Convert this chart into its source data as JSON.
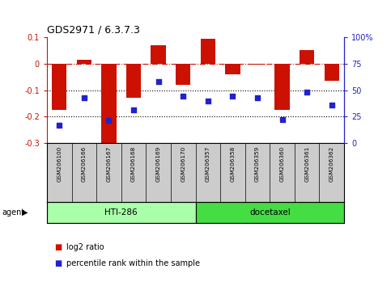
{
  "title": "GDS2971 / 6.3.7.3",
  "samples": [
    "GSM206100",
    "GSM206166",
    "GSM206167",
    "GSM206168",
    "GSM206169",
    "GSM206170",
    "GSM206357",
    "GSM206358",
    "GSM206359",
    "GSM206360",
    "GSM206361",
    "GSM206362"
  ],
  "log2_ratio": [
    -0.175,
    0.015,
    -0.305,
    -0.13,
    0.07,
    -0.08,
    0.095,
    -0.04,
    -0.005,
    -0.175,
    0.05,
    -0.065
  ],
  "percentile_plot": [
    17,
    43,
    21,
    31,
    58,
    44,
    40,
    44,
    43,
    22,
    48,
    36
  ],
  "groups": [
    {
      "label": "HTI-286",
      "start": 0,
      "end": 6,
      "color": "#aaffaa"
    },
    {
      "label": "docetaxel",
      "start": 6,
      "end": 12,
      "color": "#44dd44"
    }
  ],
  "bar_color": "#cc1100",
  "dot_color": "#2222cc",
  "ylim_left": [
    -0.3,
    0.1
  ],
  "ylim_right": [
    0,
    100
  ],
  "yticks_left": [
    -0.3,
    -0.2,
    -0.1,
    0.0,
    0.1
  ],
  "yticks_right": [
    0,
    25,
    50,
    75,
    100
  ],
  "hlines": [
    0.0,
    -0.1,
    -0.2
  ],
  "hline_styles": [
    "dashdot",
    "dotted",
    "dotted"
  ],
  "hline_colors": [
    "#cc1100",
    "black",
    "black"
  ],
  "agent_label": "agent",
  "legend_items": [
    {
      "label": "log2 ratio",
      "color": "#cc1100"
    },
    {
      "label": "percentile rank within the sample",
      "color": "#2222cc"
    }
  ],
  "background_color": "#ffffff",
  "label_row_color": "#cccccc",
  "group_row_bg": "#ffffff"
}
